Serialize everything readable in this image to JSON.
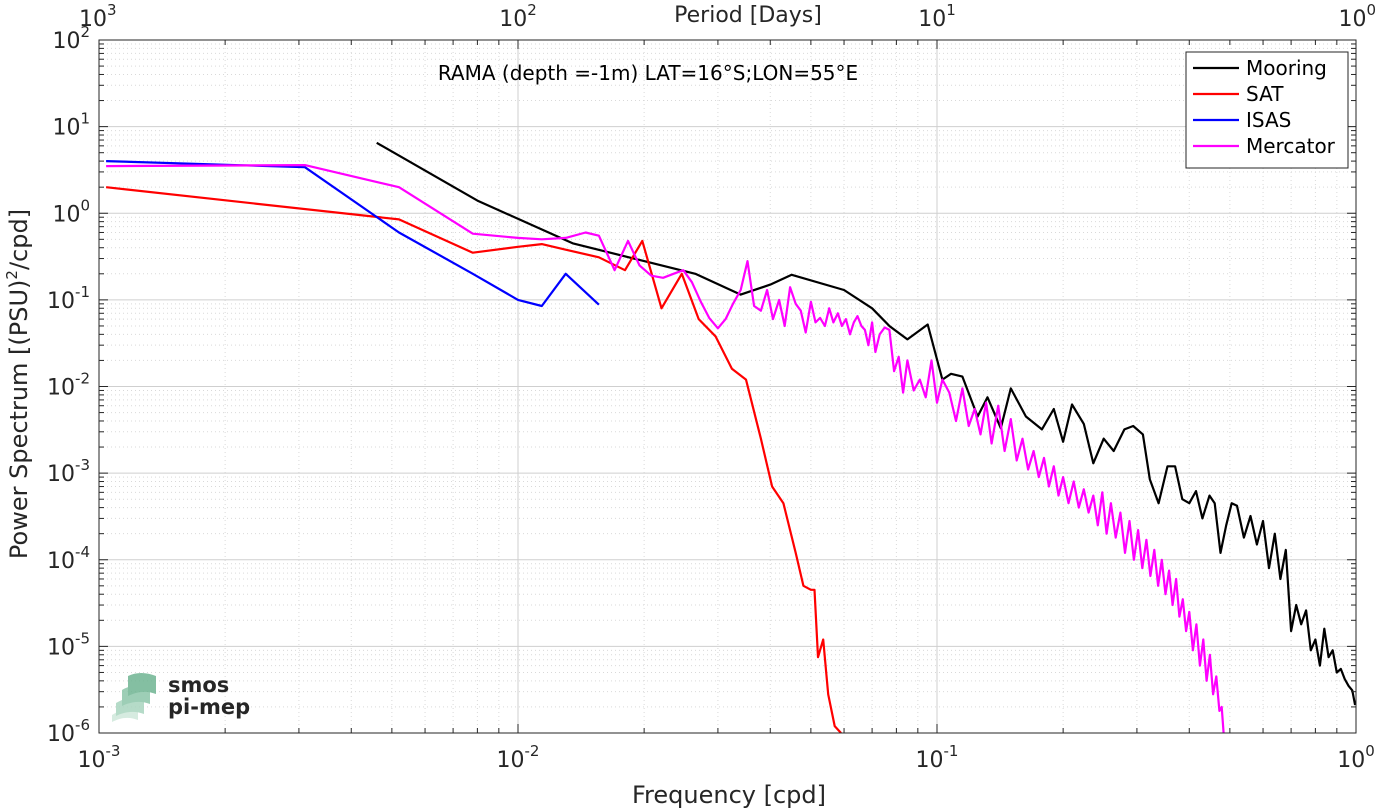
{
  "chart_data": {
    "type": "line",
    "title": "RAMA (depth =-1m) LAT=16°S;LON=55°E",
    "xlabel": "Frequency [cpd]",
    "ylabel_main": "Power Spectrum [(PSU)",
    "ylabel_sup": "2",
    "ylabel_tail": "/cpd]",
    "top_axis_label": "Period [Days]",
    "xscale": "log",
    "yscale": "log",
    "xlim": [
      0.001,
      1
    ],
    "ylim": [
      1e-06,
      100
    ],
    "grid": true,
    "legend_position": "top-right",
    "x_ticks": [
      {
        "value": 0.001,
        "base": "10",
        "exp": "-3"
      },
      {
        "value": 0.01,
        "base": "10",
        "exp": "-2"
      },
      {
        "value": 0.1,
        "base": "10",
        "exp": "-1"
      },
      {
        "value": 1,
        "base": "10",
        "exp": "0"
      }
    ],
    "top_ticks": [
      {
        "value": 0.001,
        "base": "10",
        "exp": "3"
      },
      {
        "value": 0.01,
        "base": "10",
        "exp": "2"
      },
      {
        "value": 0.1,
        "base": "10",
        "exp": "1"
      },
      {
        "value": 1,
        "base": "10",
        "exp": "0"
      }
    ],
    "y_ticks": [
      {
        "value": 100,
        "base": "10",
        "exp": "2"
      },
      {
        "value": 10,
        "base": "10",
        "exp": "1"
      },
      {
        "value": 1,
        "base": "10",
        "exp": "0"
      },
      {
        "value": 0.1,
        "base": "10",
        "exp": "-1"
      },
      {
        "value": 0.01,
        "base": "10",
        "exp": "-2"
      },
      {
        "value": 0.001,
        "base": "10",
        "exp": "-3"
      },
      {
        "value": 0.0001,
        "base": "10",
        "exp": "-4"
      },
      {
        "value": 1e-05,
        "base": "10",
        "exp": "-5"
      },
      {
        "value": 1e-06,
        "base": "10",
        "exp": "-6"
      }
    ],
    "series": [
      {
        "name": "Mooring",
        "color": "#000000",
        "x": [
          0.0046,
          0.008,
          0.0135,
          0.02,
          0.0265,
          0.034,
          0.04,
          0.045,
          0.06,
          0.07,
          0.077,
          0.085,
          0.095,
          0.103,
          0.108,
          0.115,
          0.125,
          0.132,
          0.142,
          0.15,
          0.163,
          0.178,
          0.19,
          0.2,
          0.21,
          0.224,
          0.236,
          0.25,
          0.264,
          0.28,
          0.294,
          0.31,
          0.322,
          0.338,
          0.355,
          0.37,
          0.385,
          0.4,
          0.415,
          0.43,
          0.447,
          0.46,
          0.475,
          0.49,
          0.505,
          0.52,
          0.54,
          0.56,
          0.58,
          0.6,
          0.62,
          0.64,
          0.66,
          0.68,
          0.7,
          0.72,
          0.74,
          0.76,
          0.78,
          0.8,
          0.82,
          0.84,
          0.86,
          0.88,
          0.9,
          0.92,
          0.94,
          0.96,
          0.98,
          0.995
        ],
        "values": [
          6.5,
          1.4,
          0.45,
          0.28,
          0.2,
          0.115,
          0.15,
          0.195,
          0.13,
          0.08,
          0.05,
          0.035,
          0.052,
          0.012,
          0.014,
          0.013,
          0.0045,
          0.0075,
          0.0033,
          0.0095,
          0.0045,
          0.0032,
          0.0055,
          0.0023,
          0.0062,
          0.0037,
          0.0013,
          0.0025,
          0.0018,
          0.0032,
          0.0035,
          0.0028,
          0.00085,
          0.00045,
          0.0012,
          0.0012,
          0.0005,
          0.00045,
          0.00062,
          0.0003,
          0.00055,
          0.00045,
          0.00012,
          0.00025,
          0.00045,
          0.00042,
          0.00018,
          0.00032,
          0.00015,
          0.00028,
          8e-05,
          0.0002,
          6e-05,
          0.00013,
          1.5e-05,
          3e-05,
          1.8e-05,
          2.6e-05,
          9e-06,
          1.2e-05,
          6e-06,
          1.6e-05,
          7.5e-06,
          9e-06,
          5e-06,
          5.5e-06,
          4.2e-06,
          3.5e-06,
          3.1e-06,
          2.1e-06
        ]
      },
      {
        "name": "SAT",
        "color": "#ff0000",
        "x": [
          0.00104,
          0.0052,
          0.0078,
          0.01,
          0.0114,
          0.013,
          0.0156,
          0.018,
          0.0198,
          0.022,
          0.0246,
          0.027,
          0.0296,
          0.0324,
          0.035,
          0.038,
          0.0404,
          0.043,
          0.046,
          0.048,
          0.05,
          0.051,
          0.052,
          0.0535,
          0.055,
          0.057,
          0.059
        ],
        "values": [
          2.0,
          0.85,
          0.35,
          0.41,
          0.44,
          0.38,
          0.31,
          0.22,
          0.48,
          0.08,
          0.2,
          0.06,
          0.038,
          0.016,
          0.012,
          0.0025,
          0.0007,
          0.00045,
          0.00012,
          5e-05,
          4.5e-05,
          4.5e-05,
          7.5e-06,
          1.2e-05,
          2.8e-06,
          1.2e-06,
          1e-06
        ]
      },
      {
        "name": "ISAS",
        "color": "#0000ff",
        "x": [
          0.00104,
          0.0031,
          0.0052,
          0.0078,
          0.01,
          0.0114,
          0.013,
          0.0156
        ],
        "values": [
          4.0,
          3.4,
          0.6,
          0.2,
          0.1,
          0.085,
          0.2,
          0.088
        ]
      },
      {
        "name": "Mercator",
        "color": "#ff00ff",
        "x": [
          0.00104,
          0.0031,
          0.0052,
          0.0078,
          0.01,
          0.0114,
          0.013,
          0.0145,
          0.0156,
          0.017,
          0.0183,
          0.0195,
          0.0208,
          0.0222,
          0.0235,
          0.0248,
          0.026,
          0.0273,
          0.0286,
          0.03,
          0.0313,
          0.0326,
          0.034,
          0.0353,
          0.0366,
          0.038,
          0.0393,
          0.0406,
          0.042,
          0.0433,
          0.0446,
          0.046,
          0.0473,
          0.0486,
          0.05,
          0.0513,
          0.0526,
          0.054,
          0.0553,
          0.0566,
          0.058,
          0.0593,
          0.0606,
          0.062,
          0.0633,
          0.0646,
          0.066,
          0.0673,
          0.0686,
          0.07,
          0.0713,
          0.073,
          0.075,
          0.077,
          0.079,
          0.081,
          0.083,
          0.085,
          0.088,
          0.091,
          0.094,
          0.097,
          0.1,
          0.103,
          0.107,
          0.111,
          0.115,
          0.119,
          0.123,
          0.127,
          0.131,
          0.135,
          0.14,
          0.145,
          0.15,
          0.155,
          0.16,
          0.165,
          0.17,
          0.175,
          0.18,
          0.185,
          0.19,
          0.195,
          0.2,
          0.206,
          0.212,
          0.218,
          0.224,
          0.23,
          0.236,
          0.242,
          0.248,
          0.254,
          0.26,
          0.267,
          0.274,
          0.281,
          0.288,
          0.295,
          0.302,
          0.309,
          0.316,
          0.323,
          0.33,
          0.337,
          0.344,
          0.351,
          0.358,
          0.365,
          0.372,
          0.379,
          0.386,
          0.393,
          0.4,
          0.408,
          0.416,
          0.424,
          0.432,
          0.44,
          0.448,
          0.456,
          0.464,
          0.472,
          0.478,
          0.483
        ],
        "values": [
          3.5,
          3.6,
          2.0,
          0.58,
          0.52,
          0.5,
          0.52,
          0.6,
          0.55,
          0.22,
          0.48,
          0.25,
          0.19,
          0.18,
          0.2,
          0.22,
          0.16,
          0.095,
          0.062,
          0.047,
          0.06,
          0.09,
          0.13,
          0.28,
          0.085,
          0.075,
          0.13,
          0.06,
          0.1,
          0.05,
          0.14,
          0.09,
          0.075,
          0.042,
          0.095,
          0.055,
          0.062,
          0.05,
          0.08,
          0.055,
          0.07,
          0.05,
          0.06,
          0.04,
          0.055,
          0.065,
          0.05,
          0.045,
          0.03,
          0.055,
          0.025,
          0.04,
          0.048,
          0.045,
          0.015,
          0.022,
          0.0085,
          0.02,
          0.009,
          0.012,
          0.0075,
          0.02,
          0.0065,
          0.012,
          0.0085,
          0.004,
          0.0095,
          0.0035,
          0.0055,
          0.0028,
          0.0065,
          0.0022,
          0.006,
          0.0018,
          0.0042,
          0.0014,
          0.0025,
          0.0011,
          0.0018,
          0.0009,
          0.0015,
          0.0007,
          0.0012,
          0.00055,
          0.0009,
          0.00045,
          0.0008,
          0.0004,
          0.00065,
          0.00035,
          0.00055,
          0.00025,
          0.0006,
          0.0002,
          0.00045,
          0.00018,
          0.00035,
          0.00012,
          0.00028,
          0.0001,
          0.00022,
          8e-05,
          0.00017,
          6.5e-05,
          0.00013,
          5e-05,
          0.0001,
          4e-05,
          7.5e-05,
          3e-05,
          6e-05,
          2.2e-05,
          3.5e-05,
          1.5e-05,
          2.5e-05,
          9e-06,
          1.8e-05,
          6e-06,
          1.2e-05,
          4e-06,
          8e-06,
          2.8e-06,
          4.5e-06,
          1.8e-06,
          2e-06,
          1e-06
        ]
      }
    ]
  },
  "logo": {
    "line1": "smos",
    "line2": "pi-mep",
    "color": "#7dbf9f"
  }
}
